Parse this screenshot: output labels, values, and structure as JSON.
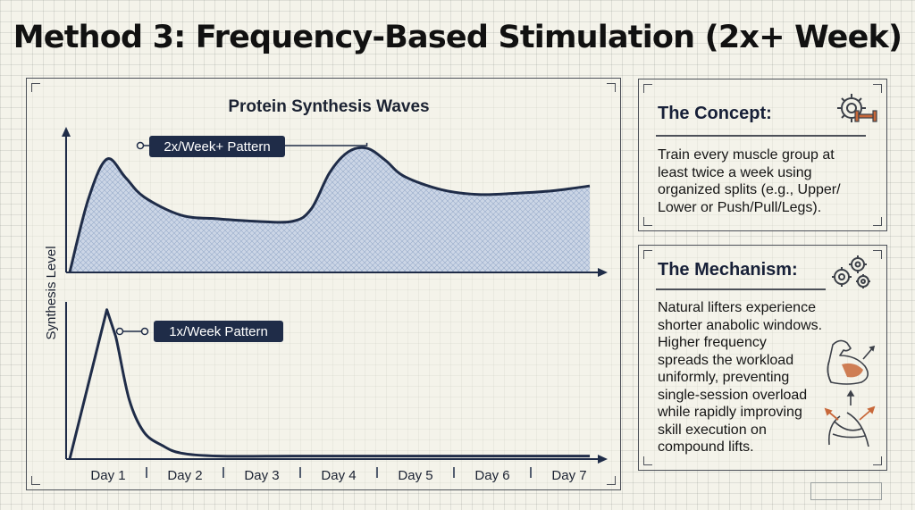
{
  "title": "Method 3: Frequency-Based Stimulation (2x+ Week)",
  "chart": {
    "title": "Protein Synthesis Waves",
    "ylabel": "Synthesis Level",
    "colors": {
      "line": "#1f2c48",
      "fill": "#9fb4d4",
      "label_bg": "#1f2c48",
      "label_text": "#ffffff"
    }
  },
  "chart_data": [
    {
      "type": "area",
      "panel": "top",
      "series": [
        {
          "name": "2x/Week+ Pattern",
          "x": [
            0,
            0.25,
            0.5,
            0.75,
            1.0,
            1.5,
            2.0,
            2.5,
            3.0,
            3.25,
            3.5,
            3.75,
            4.0,
            4.25,
            4.5,
            5.0,
            5.5,
            6.0,
            6.5,
            7.0
          ],
          "y": [
            0,
            60,
            93,
            78,
            62,
            47,
            44,
            42,
            42,
            52,
            82,
            99,
            102,
            92,
            79,
            68,
            64,
            65,
            67,
            71
          ]
        }
      ],
      "xlim": [
        0,
        7
      ],
      "ylim": [
        0,
        110
      ],
      "grid": true
    },
    {
      "type": "line",
      "panel": "bottom",
      "series": [
        {
          "name": "1x/Week Pattern",
          "x": [
            0,
            0.5,
            0.62,
            0.8,
            1.0,
            1.25,
            1.5,
            2.0,
            3.0,
            4.0,
            5.0,
            6.0,
            7.0
          ],
          "y": [
            0,
            100,
            82,
            40,
            18,
            9,
            4,
            2,
            2,
            2,
            2,
            2,
            2
          ]
        }
      ],
      "categories": [
        "Day 1",
        "Day 2",
        "Day 3",
        "Day 4",
        "Day 5",
        "Day 6",
        "Day 7"
      ],
      "xlim": [
        0,
        7
      ],
      "ylim": [
        0,
        110
      ],
      "grid": true
    }
  ],
  "concept": {
    "title": "The Concept:",
    "icon": "gear-dumbbell-icon",
    "lines": [
      "Train every muscle group at",
      "least twice a week using",
      "organized splits (e.g., Upper/",
      "Lower or Push/Pull/Legs)."
    ]
  },
  "mechanism": {
    "title": "The Mechanism:",
    "icon": "gears-icon",
    "illustration": "muscle-arm-icon",
    "lines": [
      "Natural lifters experience",
      "shorter anabolic windows.",
      "Higher frequency",
      "spreads the workload",
      "uniformly, preventing",
      "single-session overload",
      "while rapidly improving",
      "skill execution on",
      "compound lifts."
    ]
  }
}
